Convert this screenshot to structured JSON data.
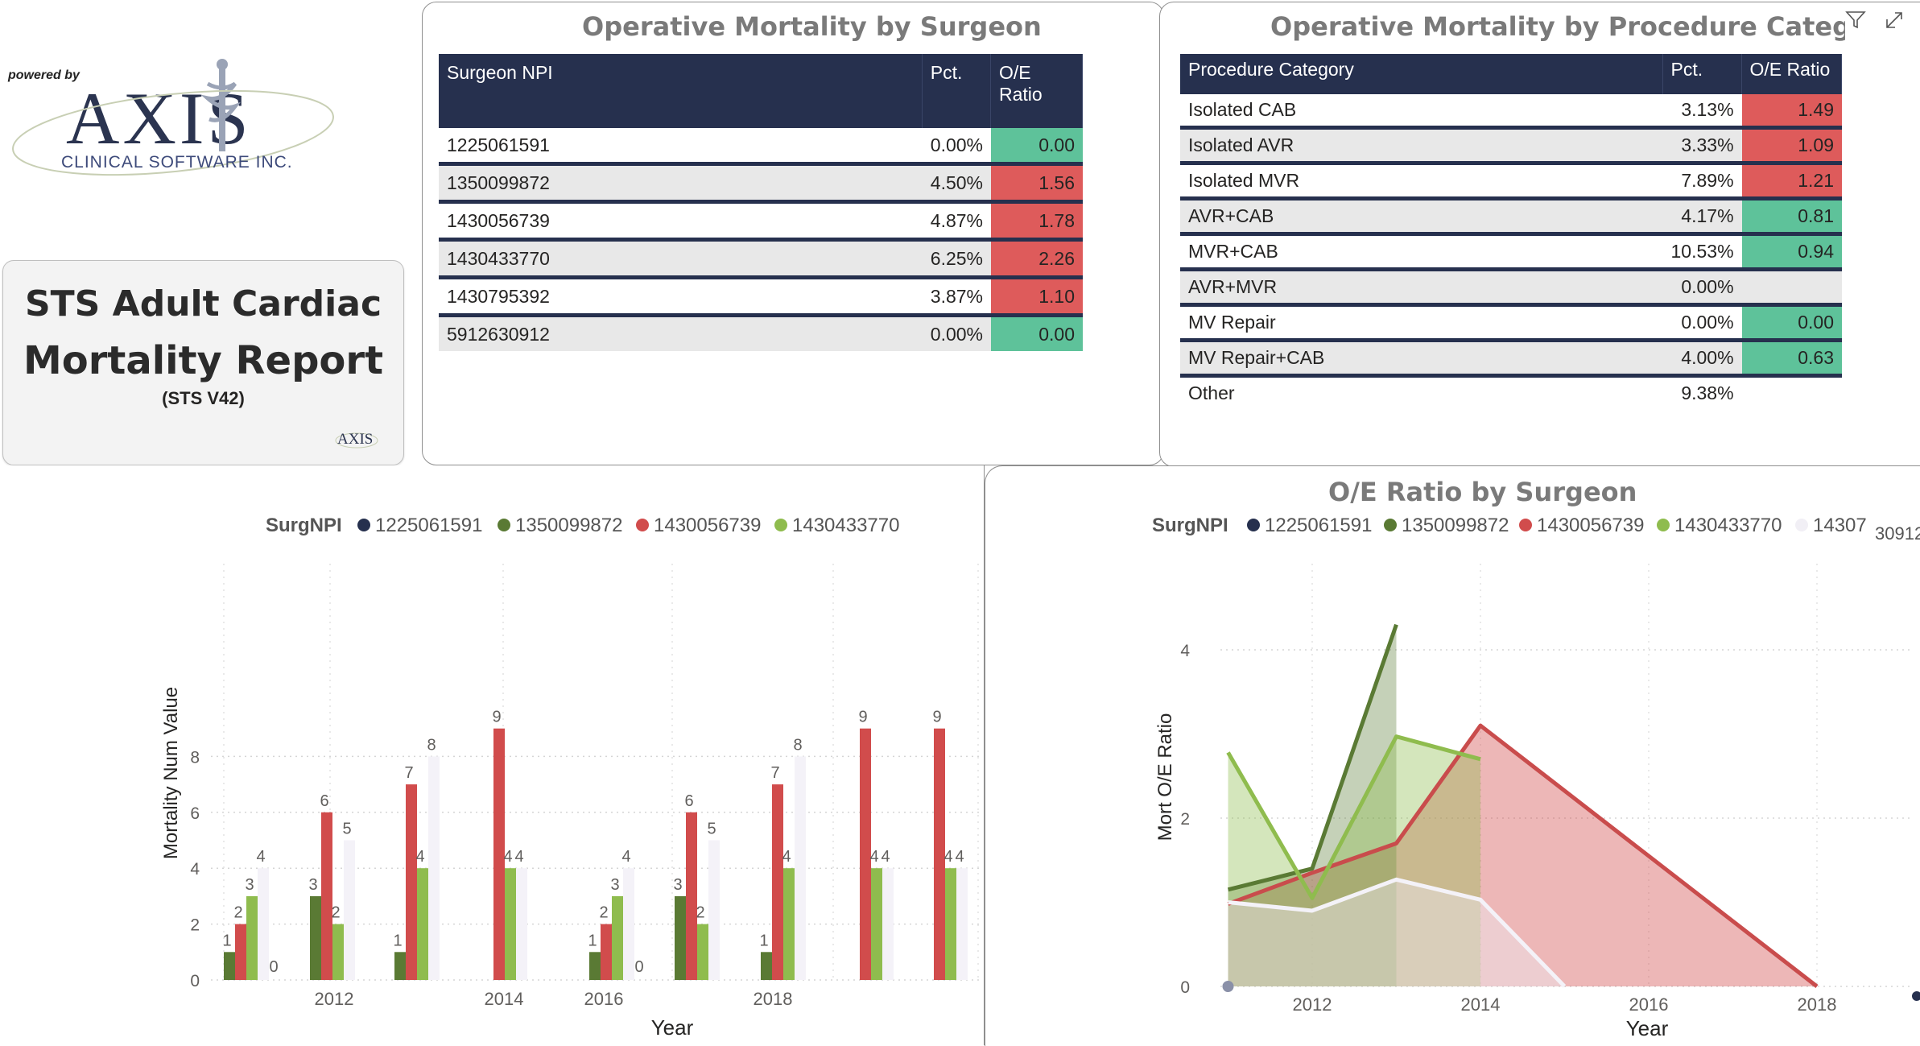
{
  "logo": {
    "powered_by": "powered by",
    "wordmark": "AXIS",
    "company": "CLINICAL SOFTWARE INC."
  },
  "title_card": {
    "line1": "STS Adult Cardiac",
    "line2": "Mortality Report",
    "sub": "(STS V42)",
    "mini_logo": "AXIS"
  },
  "surgeon_table": {
    "title": "Operative Mortality by Surgeon",
    "headers": [
      "Surgeon NPI",
      "Pct.",
      "O/E",
      "Ratio"
    ],
    "rows": [
      {
        "npi": "1225061591",
        "pct": "0.00%",
        "oe": "0.00",
        "status": "green"
      },
      {
        "npi": "1350099872",
        "pct": "4.50%",
        "oe": "1.56",
        "status": "red"
      },
      {
        "npi": "1430056739",
        "pct": "4.87%",
        "oe": "1.78",
        "status": "red"
      },
      {
        "npi": "1430433770",
        "pct": "6.25%",
        "oe": "2.26",
        "status": "red"
      },
      {
        "npi": "1430795392",
        "pct": "3.87%",
        "oe": "1.10",
        "status": "red"
      },
      {
        "npi": "5912630912",
        "pct": "0.00%",
        "oe": "0.00",
        "status": "green"
      }
    ]
  },
  "procedure_table": {
    "title": "Operative Mortality by Procedure Category",
    "headers": [
      "Procedure Category",
      "Pct.",
      "O/E Ratio"
    ],
    "rows": [
      {
        "cat": "Isolated CAB",
        "pct": "3.13%",
        "oe": "1.49",
        "status": "red"
      },
      {
        "cat": "Isolated AVR",
        "pct": "3.33%",
        "oe": "1.09",
        "status": "red"
      },
      {
        "cat": "Isolated MVR",
        "pct": "7.89%",
        "oe": "1.21",
        "status": "red"
      },
      {
        "cat": "AVR+CAB",
        "pct": "4.17%",
        "oe": "0.81",
        "status": "green"
      },
      {
        "cat": "MVR+CAB",
        "pct": "10.53%",
        "oe": "0.94",
        "status": "green"
      },
      {
        "cat": "AVR+MVR",
        "pct": "0.00%",
        "oe": "",
        "status": "none"
      },
      {
        "cat": "MV Repair",
        "pct": "0.00%",
        "oe": "0.00",
        "status": "green"
      },
      {
        "cat": "MV Repair+CAB",
        "pct": "4.00%",
        "oe": "0.63",
        "status": "green"
      },
      {
        "cat": "Other",
        "pct": "9.38%",
        "oe": "",
        "status": "none"
      }
    ]
  },
  "toolbar": {
    "filter_icon": "filter-icon",
    "focus_icon": "focus-mode-icon"
  },
  "colors": {
    "navy": "#26304e",
    "dark_green": "#5a7a34",
    "red": "#d14c4c",
    "light_green": "#8fbc4e",
    "white_series": "#f4f2f8",
    "cell_red": "#de5b5b",
    "cell_green": "#5ec29a"
  },
  "chart_data": [
    {
      "type": "bar",
      "legend_title": "SurgNPI",
      "legend": [
        "1225061591",
        "1350099872",
        "1430056739",
        "1430433770"
      ],
      "legend_placement": "top-left",
      "xlabel": "Year",
      "ylabel": "Mortality Num Value",
      "x_tick_labels": [
        "2012",
        "2014",
        "2016",
        "2018"
      ],
      "y_ticks": [
        "0",
        "2",
        "4",
        "6",
        "8"
      ],
      "ylim": [
        0,
        9.5
      ],
      "grid": true,
      "groups": [
        {
          "bars": [
            {
              "s": 1,
              "v": 1
            },
            {
              "s": 2,
              "v": 2
            },
            {
              "s": 3,
              "v": 3
            },
            {
              "s": 4,
              "v": 4
            },
            {
              "s": 4,
              "v": 0,
              "lbl": "0"
            }
          ]
        },
        {
          "bars": [
            {
              "s": 1,
              "v": 3
            },
            {
              "s": 2,
              "v": 6
            },
            {
              "s": 3,
              "v": 2
            },
            {
              "s": 4,
              "v": 5
            }
          ]
        },
        {
          "bars": [
            {
              "s": 1,
              "v": 1
            },
            {
              "s": 2,
              "v": 7
            },
            {
              "s": 3,
              "v": 4
            },
            {
              "s": 4,
              "v": 8
            }
          ]
        },
        {
          "bars": [
            {
              "s": 2,
              "v": 9
            },
            {
              "s": 3,
              "v": 4
            },
            {
              "s": 4,
              "v": 4
            }
          ]
        },
        {
          "bars": [
            {
              "s": 1,
              "v": 1
            },
            {
              "s": 2,
              "v": 2
            },
            {
              "s": 3,
              "v": 3
            },
            {
              "s": 4,
              "v": 4
            },
            {
              "s": 4,
              "v": 0,
              "lbl": "0"
            }
          ]
        },
        {
          "bars": [
            {
              "s": 1,
              "v": 3
            },
            {
              "s": 2,
              "v": 6
            },
            {
              "s": 3,
              "v": 2
            },
            {
              "s": 4,
              "v": 5
            }
          ]
        },
        {
          "bars": [
            {
              "s": 1,
              "v": 1
            },
            {
              "s": 2,
              "v": 7
            },
            {
              "s": 3,
              "v": 4
            },
            {
              "s": 4,
              "v": 8
            }
          ]
        },
        {
          "bars": [
            {
              "s": 2,
              "v": 9
            },
            {
              "s": 3,
              "v": 4
            },
            {
              "s": 4,
              "v": 4
            }
          ]
        },
        {
          "bars": [
            {
              "s": 2,
              "v": 9
            },
            {
              "s": 3,
              "v": 4
            },
            {
              "s": 4,
              "v": 4
            }
          ]
        }
      ]
    },
    {
      "type": "area",
      "title": "O/E Ratio by Surgeon",
      "legend_title": "SurgNPI",
      "legend": [
        "1225061591",
        "1350099872",
        "1430056739",
        "1430433770",
        "14307",
        "30912"
      ],
      "legend_placement": "top-left",
      "xlabel": "Year",
      "ylabel": "Mort O/E Ratio",
      "x_ticks": [
        "2012",
        "2014",
        "2016",
        "2018"
      ],
      "y_ticks": [
        "0",
        "2",
        "4"
      ],
      "xlim": [
        2011,
        2019.2
      ],
      "ylim": [
        0,
        4.6
      ],
      "series": [
        {
          "name": "1430056739",
          "color": "#c94c4c",
          "points": [
            [
              2011,
              0.98
            ],
            [
              2012,
              1.35
            ],
            [
              2013,
              1.7
            ],
            [
              2014,
              3.1
            ],
            [
              2018,
              0
            ]
          ]
        },
        {
          "name": "1350099872",
          "color": "#5a7a34",
          "points": [
            [
              2011,
              1.15
            ],
            [
              2012,
              1.4
            ],
            [
              2013,
              4.3
            ]
          ]
        },
        {
          "name": "1430433770",
          "color": "#8fbc4e",
          "points": [
            [
              2011,
              2.78
            ],
            [
              2012,
              1.05
            ],
            [
              2013,
              2.97
            ],
            [
              2014,
              2.7
            ]
          ]
        },
        {
          "name": "14307",
          "color": "#f4f2f8",
          "points": [
            [
              2011,
              1.0
            ],
            [
              2012,
              0.9
            ],
            [
              2013,
              1.27
            ],
            [
              2014,
              1.03
            ],
            [
              2015,
              0
            ]
          ]
        }
      ]
    }
  ]
}
